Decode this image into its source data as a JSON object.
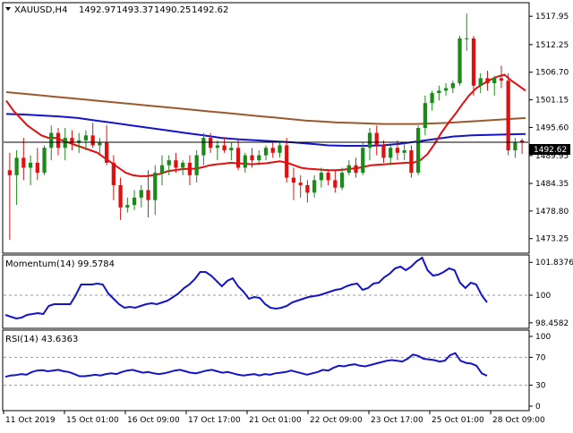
{
  "header": {
    "symbol": "XAUUSD,H4",
    "open": "1492.97",
    "high": "1493.37",
    "low": "1490.25",
    "close": "1492.62"
  },
  "price_panel": {
    "last_price_label": "1492.62",
    "ticks": [
      "1517.95",
      "1512.25",
      "1506.70",
      "1501.15",
      "1495.60",
      "1489.95",
      "1484.35",
      "1478.80",
      "1473.25"
    ]
  },
  "momentum_panel": {
    "title": "Momentum(14) 99.5784",
    "ticks": [
      "101.8376",
      "100",
      "98.4582"
    ]
  },
  "rsi_panel": {
    "title": "RSI(14) 43.6363",
    "ticks": [
      "100",
      "70",
      "30",
      "0"
    ]
  },
  "time_axis": [
    "11 Oct 2019",
    "15 Oct 01:00",
    "16 Oct 09:00",
    "17 Oct 17:00",
    "21 Oct 01:00",
    "22 Oct 09:00",
    "23 Oct 17:00",
    "25 Oct 01:00",
    "28 Oct 09:00"
  ],
  "colors": {
    "bull": "#1b8a1b",
    "bear": "#e01010",
    "sma_fast": "#e01010",
    "sma_mid": "#1414c8",
    "sma_slow": "#9a5a2e",
    "indicator": "#1414c8",
    "grid_dash": "#9a9a9a"
  },
  "chart_data": [
    {
      "type": "candlestick",
      "title": "XAUUSD,H4",
      "ylim": [
        1470.5,
        1520.5
      ],
      "last_price": 1492.62,
      "candles": [
        {
          "o": 1487.0,
          "h": 1490.5,
          "l": 1473.0,
          "c": 1486.0
        },
        {
          "o": 1486.0,
          "h": 1491.0,
          "l": 1480.0,
          "c": 1489.5
        },
        {
          "o": 1489.5,
          "h": 1493.5,
          "l": 1485.0,
          "c": 1487.5
        },
        {
          "o": 1487.5,
          "h": 1490.0,
          "l": 1484.0,
          "c": 1488.5
        },
        {
          "o": 1488.5,
          "h": 1491.5,
          "l": 1485.0,
          "c": 1486.5
        },
        {
          "o": 1486.5,
          "h": 1492.0,
          "l": 1486.0,
          "c": 1491.5
        },
        {
          "o": 1491.5,
          "h": 1496.0,
          "l": 1489.0,
          "c": 1494.5
        },
        {
          "o": 1494.5,
          "h": 1495.5,
          "l": 1490.0,
          "c": 1491.5
        },
        {
          "o": 1491.5,
          "h": 1495.5,
          "l": 1489.0,
          "c": 1493.5
        },
        {
          "o": 1493.5,
          "h": 1495.0,
          "l": 1491.0,
          "c": 1492.5
        },
        {
          "o": 1492.5,
          "h": 1494.5,
          "l": 1490.5,
          "c": 1493.0
        },
        {
          "o": 1493.0,
          "h": 1495.0,
          "l": 1491.0,
          "c": 1494.0
        },
        {
          "o": 1494.0,
          "h": 1496.5,
          "l": 1491.5,
          "c": 1492.0
        },
        {
          "o": 1492.0,
          "h": 1493.5,
          "l": 1490.0,
          "c": 1492.5
        },
        {
          "o": 1492.5,
          "h": 1496.0,
          "l": 1488.0,
          "c": 1488.5
        },
        {
          "o": 1488.5,
          "h": 1490.0,
          "l": 1481.0,
          "c": 1484.0
        },
        {
          "o": 1484.0,
          "h": 1485.5,
          "l": 1477.0,
          "c": 1479.5
        },
        {
          "o": 1479.5,
          "h": 1481.5,
          "l": 1478.5,
          "c": 1480.0
        },
        {
          "o": 1480.0,
          "h": 1483.0,
          "l": 1479.0,
          "c": 1481.5
        },
        {
          "o": 1481.5,
          "h": 1484.0,
          "l": 1479.5,
          "c": 1483.0
        },
        {
          "o": 1483.0,
          "h": 1487.0,
          "l": 1477.5,
          "c": 1481.0
        },
        {
          "o": 1481.0,
          "h": 1488.0,
          "l": 1478.0,
          "c": 1486.5
        },
        {
          "o": 1486.5,
          "h": 1490.0,
          "l": 1484.0,
          "c": 1488.0
        },
        {
          "o": 1488.0,
          "h": 1490.0,
          "l": 1486.0,
          "c": 1489.0
        },
        {
          "o": 1489.0,
          "h": 1490.5,
          "l": 1486.5,
          "c": 1487.5
        },
        {
          "o": 1487.5,
          "h": 1489.0,
          "l": 1486.0,
          "c": 1488.5
        },
        {
          "o": 1488.5,
          "h": 1490.0,
          "l": 1484.0,
          "c": 1486.0
        },
        {
          "o": 1486.0,
          "h": 1491.0,
          "l": 1484.5,
          "c": 1490.0
        },
        {
          "o": 1490.0,
          "h": 1494.5,
          "l": 1488.0,
          "c": 1493.5
        },
        {
          "o": 1493.5,
          "h": 1494.5,
          "l": 1490.5,
          "c": 1491.5
        },
        {
          "o": 1491.5,
          "h": 1493.0,
          "l": 1489.0,
          "c": 1492.0
        },
        {
          "o": 1492.0,
          "h": 1493.5,
          "l": 1490.5,
          "c": 1491.0
        },
        {
          "o": 1491.0,
          "h": 1492.5,
          "l": 1489.0,
          "c": 1491.5
        },
        {
          "o": 1491.5,
          "h": 1493.0,
          "l": 1487.0,
          "c": 1487.5
        },
        {
          "o": 1487.5,
          "h": 1490.5,
          "l": 1486.5,
          "c": 1490.0
        },
        {
          "o": 1490.0,
          "h": 1491.5,
          "l": 1487.5,
          "c": 1489.0
        },
        {
          "o": 1489.0,
          "h": 1491.0,
          "l": 1488.0,
          "c": 1490.0
        },
        {
          "o": 1490.0,
          "h": 1492.0,
          "l": 1489.0,
          "c": 1491.5
        },
        {
          "o": 1491.5,
          "h": 1492.5,
          "l": 1489.5,
          "c": 1490.5
        },
        {
          "o": 1490.5,
          "h": 1493.0,
          "l": 1489.5,
          "c": 1492.0
        },
        {
          "o": 1492.0,
          "h": 1493.5,
          "l": 1484.5,
          "c": 1485.5
        },
        {
          "o": 1485.5,
          "h": 1487.5,
          "l": 1481.0,
          "c": 1484.5
        },
        {
          "o": 1484.5,
          "h": 1486.0,
          "l": 1481.5,
          "c": 1484.0
        },
        {
          "o": 1484.0,
          "h": 1485.0,
          "l": 1480.5,
          "c": 1482.5
        },
        {
          "o": 1482.5,
          "h": 1486.0,
          "l": 1481.5,
          "c": 1485.0
        },
        {
          "o": 1485.0,
          "h": 1487.5,
          "l": 1483.5,
          "c": 1486.5
        },
        {
          "o": 1486.5,
          "h": 1487.0,
          "l": 1484.0,
          "c": 1485.0
        },
        {
          "o": 1485.0,
          "h": 1487.0,
          "l": 1482.5,
          "c": 1483.5
        },
        {
          "o": 1483.5,
          "h": 1487.5,
          "l": 1483.0,
          "c": 1486.5
        },
        {
          "o": 1486.5,
          "h": 1489.0,
          "l": 1486.0,
          "c": 1488.0
        },
        {
          "o": 1488.0,
          "h": 1489.5,
          "l": 1485.5,
          "c": 1486.5
        },
        {
          "o": 1486.5,
          "h": 1492.5,
          "l": 1486.0,
          "c": 1491.5
        },
        {
          "o": 1491.5,
          "h": 1495.5,
          "l": 1489.0,
          "c": 1494.5
        },
        {
          "o": 1494.5,
          "h": 1496.0,
          "l": 1490.0,
          "c": 1492.0
        },
        {
          "o": 1492.0,
          "h": 1493.0,
          "l": 1488.5,
          "c": 1489.5
        },
        {
          "o": 1489.5,
          "h": 1492.0,
          "l": 1488.0,
          "c": 1491.5
        },
        {
          "o": 1491.5,
          "h": 1493.0,
          "l": 1489.0,
          "c": 1490.5
        },
        {
          "o": 1490.5,
          "h": 1492.5,
          "l": 1489.0,
          "c": 1491.0
        },
        {
          "o": 1491.0,
          "h": 1492.0,
          "l": 1485.5,
          "c": 1486.5
        },
        {
          "o": 1486.5,
          "h": 1496.0,
          "l": 1486.0,
          "c": 1495.5
        },
        {
          "o": 1495.5,
          "h": 1502.0,
          "l": 1494.0,
          "c": 1500.5
        },
        {
          "o": 1500.5,
          "h": 1503.0,
          "l": 1499.0,
          "c": 1502.5
        },
        {
          "o": 1502.5,
          "h": 1504.0,
          "l": 1501.0,
          "c": 1503.0
        },
        {
          "o": 1503.0,
          "h": 1504.5,
          "l": 1502.0,
          "c": 1503.5
        },
        {
          "o": 1503.5,
          "h": 1505.0,
          "l": 1502.5,
          "c": 1504.5
        },
        {
          "o": 1504.5,
          "h": 1514.0,
          "l": 1504.0,
          "c": 1513.5
        },
        {
          "o": 1513.5,
          "h": 1518.5,
          "l": 1511.0,
          "c": 1513.5
        },
        {
          "o": 1513.5,
          "h": 1514.0,
          "l": 1502.0,
          "c": 1504.0
        },
        {
          "o": 1504.0,
          "h": 1506.5,
          "l": 1502.5,
          "c": 1505.5
        },
        {
          "o": 1505.5,
          "h": 1507.0,
          "l": 1503.0,
          "c": 1504.5
        },
        {
          "o": 1504.5,
          "h": 1506.0,
          "l": 1502.0,
          "c": 1505.5
        },
        {
          "o": 1505.5,
          "h": 1508.0,
          "l": 1503.5,
          "c": 1505.0
        },
        {
          "o": 1505.0,
          "h": 1506.5,
          "l": 1490.0,
          "c": 1491.0
        },
        {
          "o": 1491.0,
          "h": 1493.5,
          "l": 1489.5,
          "c": 1492.5
        },
        {
          "o": 1492.97,
          "h": 1493.37,
          "l": 1490.25,
          "c": 1492.62
        }
      ],
      "sma_fast": [
        1501,
        1499,
        1497.5,
        1496,
        1495,
        1494,
        1493.5,
        1493.5,
        1493,
        1492.5,
        1492,
        1491.5,
        1491,
        1490.5,
        1489.5,
        1488.5,
        1487.5,
        1486.5,
        1486,
        1485.8,
        1485.8,
        1486,
        1486.3,
        1486.8,
        1487,
        1487.2,
        1487.3,
        1487.3,
        1487.6,
        1488,
        1488.2,
        1488.3,
        1488.5,
        1488.4,
        1488.3,
        1488.2,
        1488.3,
        1488.4,
        1488.6,
        1488.8,
        1488.5,
        1488,
        1487.5,
        1487.3,
        1487.2,
        1487.1,
        1487,
        1487,
        1487.1,
        1487.3,
        1487.4,
        1487.7,
        1488,
        1488.1,
        1488.2,
        1488.3,
        1488.4,
        1488.5,
        1488.5,
        1489,
        1490.2,
        1492.2,
        1494.5,
        1496.5,
        1498.3,
        1500.3,
        1502.1,
        1503.5,
        1504.4,
        1505.2,
        1505.8,
        1506.2,
        1505,
        1504,
        1503
      ]
    },
    {
      "type": "line",
      "title": "Momentum(14) 99.5784",
      "ylim": [
        98.2,
        102.2
      ],
      "reference": 100,
      "values": [
        98.9,
        98.8,
        98.7,
        98.75,
        98.9,
        98.95,
        99.0,
        98.95,
        99.4,
        99.5,
        99.5,
        99.5,
        99.5,
        100.0,
        100.6,
        100.6,
        100.6,
        100.65,
        100.6,
        100.1,
        99.8,
        99.5,
        99.3,
        99.35,
        99.3,
        99.4,
        99.5,
        99.55,
        99.5,
        99.6,
        99.7,
        99.9,
        100.1,
        100.4,
        100.6,
        100.9,
        101.3,
        101.3,
        101.1,
        100.8,
        100.5,
        100.8,
        100.95,
        100.5,
        100.2,
        99.8,
        99.9,
        99.85,
        99.5,
        99.3,
        99.25,
        99.3,
        99.4,
        99.6,
        99.7,
        99.8,
        99.9,
        99.95,
        100.0,
        100.1,
        100.2,
        100.3,
        100.35,
        100.5,
        100.6,
        100.65,
        100.3,
        100.4,
        100.65,
        100.7,
        101.0,
        101.2,
        101.5,
        101.6,
        101.4,
        101.6,
        101.9,
        102.1,
        101.4,
        101.1,
        101.15,
        101.3,
        101.5,
        101.4,
        100.7,
        100.4,
        100.7,
        100.6,
        100.0,
        99.6
      ]
    },
    {
      "type": "line",
      "title": "RSI(14) 43.6363",
      "ylim": [
        0,
        100
      ],
      "reference_levels": [
        30,
        70
      ],
      "values": [
        42,
        44,
        44.5,
        46,
        45,
        49,
        51,
        51.5,
        50,
        51,
        52,
        50,
        49,
        46,
        43,
        43,
        44,
        45,
        44,
        46,
        47,
        46,
        49,
        51,
        52,
        50,
        48,
        49,
        47,
        46,
        47,
        49,
        51,
        52,
        50,
        48,
        47,
        49,
        51,
        52,
        50,
        48,
        49,
        47,
        45,
        44,
        45,
        46,
        44,
        46,
        45,
        47,
        48,
        49,
        51,
        49,
        47,
        45,
        47,
        49,
        52,
        51,
        55,
        58,
        57,
        59,
        60,
        58,
        57,
        59,
        61,
        63,
        65,
        66,
        65,
        64,
        68,
        74,
        72,
        68,
        67,
        66,
        64,
        65,
        73,
        76,
        65,
        62,
        61,
        58,
        47,
        43.6
      ]
    }
  ]
}
